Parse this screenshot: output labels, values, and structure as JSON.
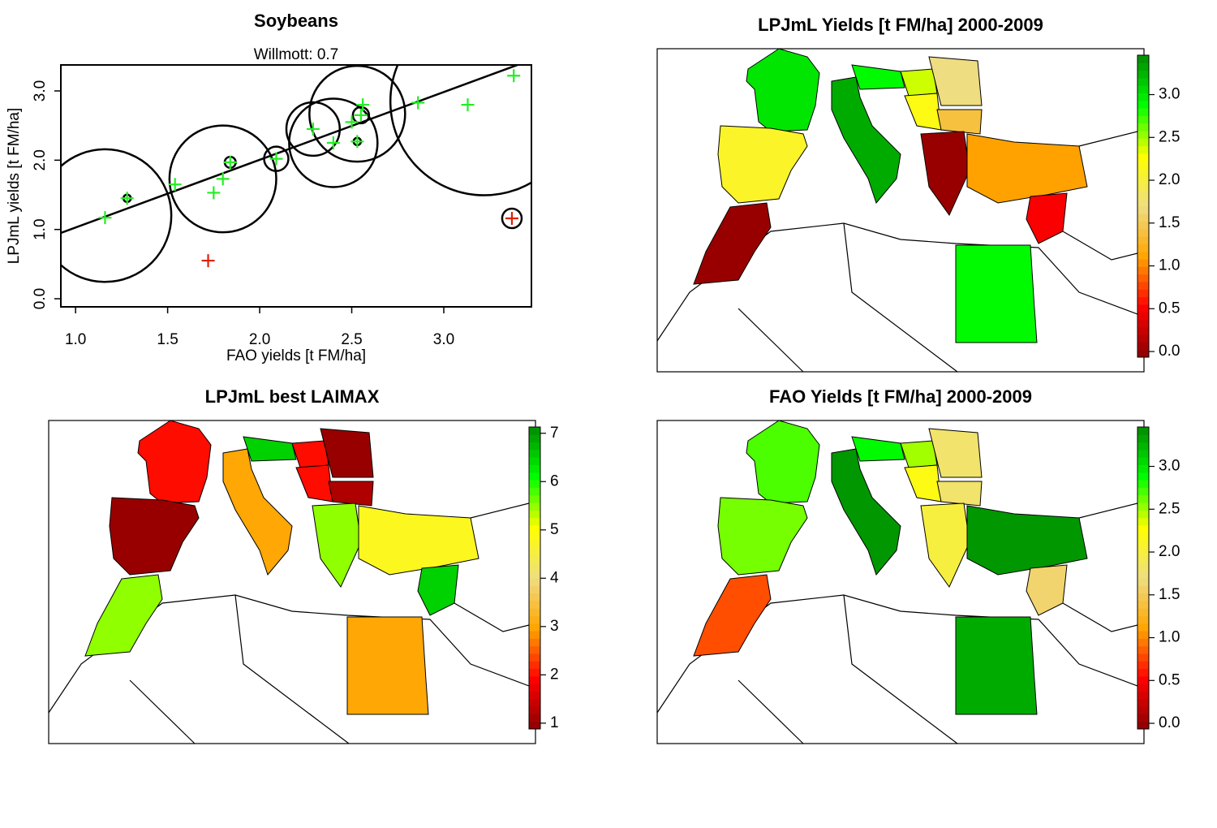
{
  "chart_data": [
    {
      "type": "scatter",
      "title": "Soybeans",
      "subtitle": "Willmott: 0.7",
      "x_label": "FAO yields [t FM/ha]",
      "y_label": "LPJmL yields [t FM/ha]",
      "xlim": [
        0.92,
        3.476
      ],
      "ylim": [
        -0.117,
        3.375
      ],
      "xticks": [
        {
          "value": 1,
          "label": "1.0"
        },
        {
          "value": 1.5,
          "label": "1.5"
        },
        {
          "value": 2,
          "label": "2.0"
        },
        {
          "value": 2.5,
          "label": "2.5"
        },
        {
          "value": 3,
          "label": "3.0"
        }
      ],
      "yticks": [
        {
          "value": 0,
          "label": "0.0"
        },
        {
          "value": 1,
          "label": "1.0"
        },
        {
          "value": 2,
          "label": "2.0"
        },
        {
          "value": 3,
          "label": "3.0"
        }
      ],
      "series": [
        {
          "color": "#22ee22",
          "x": [
            1.16,
            1.28,
            1.54,
            1.75,
            1.8,
            1.84,
            2.09,
            2.29,
            2.4,
            2.5,
            2.53,
            2.55,
            2.56,
            2.86,
            3.13,
            3.38
          ],
          "values": [
            1.17,
            1.45,
            1.65,
            1.53,
            1.73,
            1.97,
            2.02,
            2.45,
            2.25,
            2.55,
            2.27,
            2.65,
            2.8,
            2.83,
            2.8,
            3.22
          ]
        },
        {
          "color": "#dd2200",
          "x": [
            1.72,
            3.37
          ],
          "values": [
            0.55,
            1.16
          ]
        }
      ],
      "circles": {
        "x": [
          1.16,
          1.28,
          1.8,
          1.84,
          2.09,
          2.29,
          2.4,
          2.53,
          2.55,
          2.53,
          3.22,
          3.37
        ],
        "y": [
          1.2,
          1.45,
          1.73,
          1.97,
          2.02,
          2.45,
          2.25,
          2.67,
          2.65,
          2.27,
          2.85,
          1.16
        ],
        "size": [
          0.36,
          0.02,
          0.29,
          0.03,
          0.066,
          0.145,
          0.24,
          0.26,
          0.044,
          0.02,
          0.51,
          0.053
        ]
      },
      "fit": {
        "x": [
          0.92,
          3.4
        ],
        "y": [
          0.95,
          3.375
        ]
      }
    },
    {
      "type": "map",
      "title": "LPJmL Yields [t FM/ha] 2000-2009",
      "values": [
        3.0,
        2.1,
        3.3,
        2.9,
        2.4,
        2.2,
        1.7,
        1.4,
        0.0,
        1.1,
        0.5,
        0.0,
        2.9
      ],
      "colors": [
        "#8b0000",
        "#ff0000",
        "#ffa500",
        "#eedd82",
        "#ffff00",
        "#00ff00",
        "#008b00"
      ],
      "clim": [
        -0.066,
        3.46
      ],
      "cticks": [
        {
          "value": 0,
          "label": "0.0"
        },
        {
          "value": 0.5,
          "label": "0.5"
        },
        {
          "value": 1,
          "label": "1.0"
        },
        {
          "value": 1.5,
          "label": "1.5"
        },
        {
          "value": 2,
          "label": "2.0"
        },
        {
          "value": 2.5,
          "label": "2.5"
        },
        {
          "value": 3,
          "label": "3.0"
        }
      ]
    },
    {
      "type": "map",
      "title": "LPJmL best LAIMAX",
      "values": [
        2,
        1,
        3,
        6.5,
        2,
        2,
        1,
        1.2,
        5.5,
        4.8,
        6.5,
        5.5,
        3
      ],
      "colors": [
        "#8b0000",
        "#ff0000",
        "#ffa500",
        "#eedd82",
        "#ffff00",
        "#00ff00",
        "#008b00"
      ],
      "clim": [
        0.88,
        7.13
      ],
      "cticks": [
        1,
        2,
        3,
        4,
        5,
        6,
        7
      ]
    },
    {
      "type": "map",
      "title": "FAO Yields [t FM/ha] 2000-2009",
      "values": [
        2.7,
        2.6,
        3.4,
        2.9,
        2.5,
        2.2,
        1.8,
        1.8,
        2.0,
        3.4,
        1.6,
        0.8,
        3.3
      ],
      "colors": [
        "#8b0000",
        "#ff0000",
        "#ffa500",
        "#eedd82",
        "#ffff00",
        "#00ff00",
        "#008b00"
      ],
      "clim": [
        -0.066,
        3.46
      ],
      "cticks": [
        {
          "value": 0,
          "label": "0.0"
        },
        {
          "value": 0.5,
          "label": "0.5"
        },
        {
          "value": 1,
          "label": "1.0"
        },
        {
          "value": 1.5,
          "label": "1.5"
        },
        {
          "value": 2,
          "label": "2.0"
        },
        {
          "value": 2.5,
          "label": "2.5"
        },
        {
          "value": 3,
          "label": "3.0"
        }
      ]
    }
  ]
}
